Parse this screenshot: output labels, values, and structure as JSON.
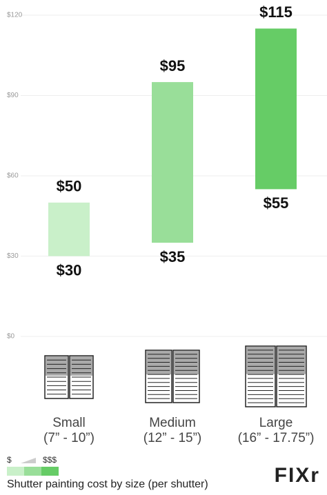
{
  "chart_data": {
    "type": "range_bar",
    "caption": "Shutter painting cost by size (per shutter)",
    "categories": [
      "Small",
      "Medium",
      "Large"
    ],
    "sizes": [
      "(7” - 10”)",
      "(12” - 15”)",
      "(16” - 17.75”)"
    ],
    "low": [
      30,
      35,
      55
    ],
    "high": [
      50,
      95,
      115
    ],
    "low_labels": [
      "$30",
      "$35",
      "$55"
    ],
    "high_labels": [
      "$50",
      "$95",
      "$115"
    ],
    "colors": [
      "#c9f0c9",
      "#99de99",
      "#66cc66"
    ],
    "ylim": [
      0,
      120
    ],
    "yticks": [
      {
        "value": 0,
        "label": "$0"
      },
      {
        "value": 30,
        "label": "$30"
      },
      {
        "value": 60,
        "label": "$60"
      },
      {
        "value": 90,
        "label": "$90"
      },
      {
        "value": 120,
        "label": "$120"
      }
    ],
    "grid": true,
    "scale_low": "$",
    "scale_high": "$$$",
    "logo": "FIXr"
  }
}
